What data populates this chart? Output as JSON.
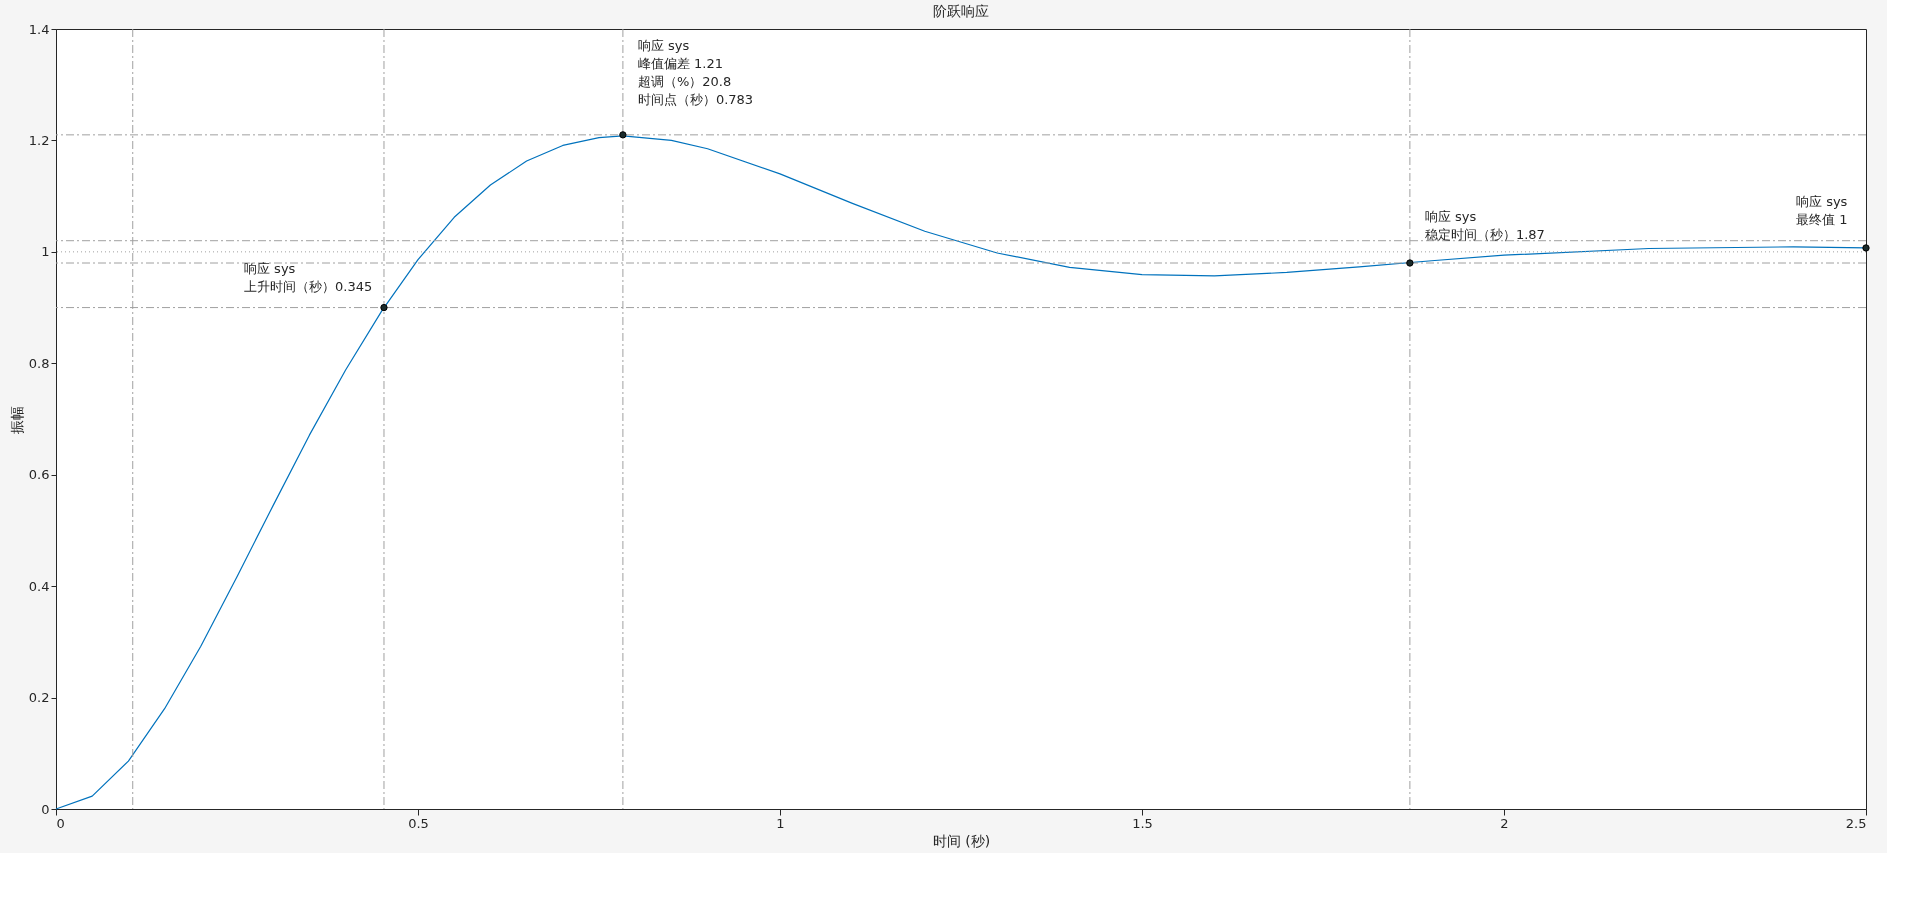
{
  "chart_data": {
    "type": "line",
    "title": "阶跃响应",
    "xlabel": "时间 (秒)",
    "ylabel": "振幅",
    "xlim": [
      0,
      2.5
    ],
    "xticks": [
      0,
      0.5,
      1,
      1.5,
      2,
      2.5
    ],
    "ylim": [
      0,
      1.4
    ],
    "yticks": [
      0,
      0.2,
      0.4,
      0.6,
      0.8,
      1,
      1.2,
      1.4
    ],
    "marker": "none",
    "line_style": "solid",
    "series": [
      {
        "color": "#0072bd",
        "x": [
          0,
          0.05,
          0.1,
          0.15,
          0.2,
          0.25,
          0.3,
          0.35,
          0.4,
          0.45,
          0.5,
          0.55,
          0.6,
          0.65,
          0.7,
          0.75,
          0.783,
          0.85,
          0.9,
          1.0,
          1.1,
          1.2,
          1.3,
          1.4,
          1.5,
          1.6,
          1.7,
          1.8,
          1.9,
          2.0,
          2.2,
          2.4,
          2.5
        ],
        "values": [
          0,
          0.023,
          0.086,
          0.18,
          0.292,
          0.417,
          0.545,
          0.671,
          0.788,
          0.894,
          0.986,
          1.062,
          1.12,
          1.163,
          1.191,
          1.205,
          1.208,
          1.2,
          1.185,
          1.14,
          1.087,
          1.037,
          0.998,
          0.972,
          0.959,
          0.957,
          0.963,
          0.973,
          0.984,
          0.994,
          1.006,
          1.009,
          1.007
        ]
      },
      {
        "type": "scatter",
        "marker": "circle",
        "color": "#1a2a2a",
        "x": [
          0.453,
          0.783,
          1.87,
          2.5
        ],
        "values": [
          0.9,
          1.21,
          0.98,
          1.007
        ]
      }
    ],
    "ref_lines": [
      {
        "axis": "y",
        "value": 1.21,
        "line_style": "dashdot",
        "color": "#a0a0a0"
      },
      {
        "axis": "x",
        "value": 0.783,
        "line_style": "dashdot",
        "color": "#a0a0a0"
      },
      {
        "axis": "y",
        "value": 0.9,
        "line_style": "dashdot",
        "color": "#a0a0a0"
      },
      {
        "axis": "x",
        "value": 0.106,
        "line_style": "dashdot",
        "color": "#a0a0a0"
      },
      {
        "axis": "x",
        "value": 0.453,
        "line_style": "dashdot",
        "color": "#a0a0a0"
      },
      {
        "axis": "y",
        "value": 1.02,
        "line_style": "dashdot",
        "color": "#a0a0a0"
      },
      {
        "axis": "y",
        "value": 0.98,
        "line_style": "dashdot",
        "color": "#a0a0a0"
      },
      {
        "axis": "x",
        "value": 1.87,
        "line_style": "dashdot",
        "color": "#a0a0a0"
      },
      {
        "axis": "y",
        "value": 1,
        "line_style": "dotted",
        "color": "#a0a0a0"
      }
    ],
    "annotations": [
      {
        "text": "响应  sys\n上升时间（秒）0.345",
        "x": 0.453,
        "y": 0.9
      },
      {
        "text": "响应  sys\n峰值偏差  1.21\n超调（%）20.8\n时间点（秒）0.783",
        "x": 0.783,
        "y": 1.21
      },
      {
        "text": "响应  sys\n稳定时间（秒）1.87",
        "x": 1.87,
        "y": 0.98
      },
      {
        "text": "响应  sys\n最终值  1",
        "x": 2.5,
        "y": 1.007
      }
    ]
  }
}
